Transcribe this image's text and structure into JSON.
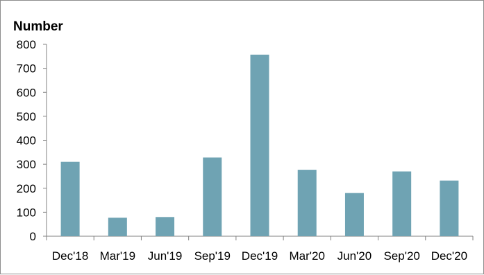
{
  "chart_data": {
    "type": "bar",
    "title": "",
    "ylabel": "Number",
    "xlabel": "",
    "ylim": [
      0,
      800
    ],
    "yticks": [
      0,
      100,
      200,
      300,
      400,
      500,
      600,
      700,
      800
    ],
    "categories": [
      "Dec'18",
      "Mar'19",
      "Jun'19",
      "Sep'19",
      "Dec'19",
      "Mar'20",
      "Jun'20",
      "Sep'20",
      "Dec'20"
    ],
    "values": [
      310,
      77,
      80,
      328,
      757,
      277,
      180,
      270,
      232
    ],
    "bar_color": "#6fa3b3",
    "grid": false,
    "legend": "none"
  }
}
